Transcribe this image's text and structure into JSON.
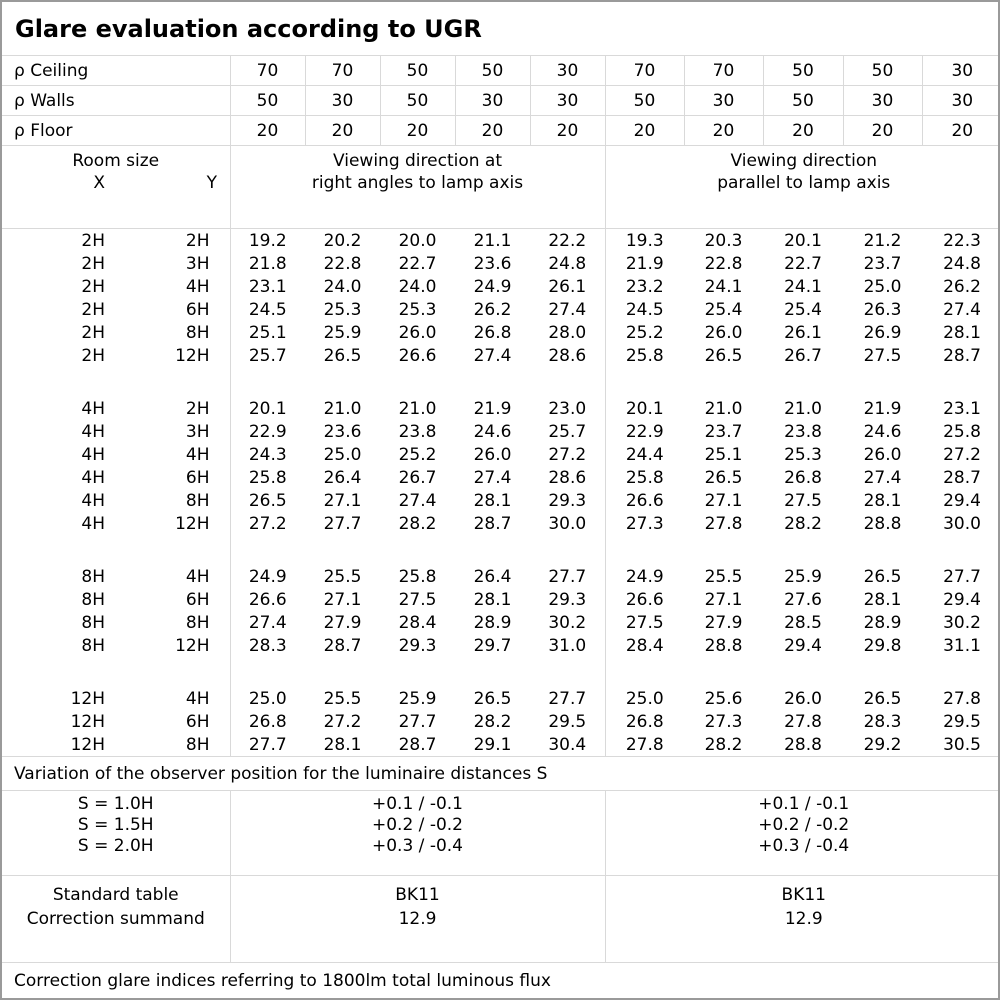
{
  "title": "Glare evaluation according to UGR",
  "colors": {
    "background": "#ffffff",
    "text": "#000000",
    "grid_line": "#d9d9d9",
    "outer_border": "#9a9a9a"
  },
  "reflectance": {
    "rows": [
      {
        "label": "ρ Ceiling",
        "values": [
          "70",
          "70",
          "50",
          "50",
          "30",
          "70",
          "70",
          "50",
          "50",
          "30"
        ]
      },
      {
        "label": "ρ Walls",
        "values": [
          "50",
          "30",
          "50",
          "30",
          "30",
          "50",
          "30",
          "50",
          "30",
          "30"
        ]
      },
      {
        "label": "ρ Floor",
        "values": [
          "20",
          "20",
          "20",
          "20",
          "20",
          "20",
          "20",
          "20",
          "20",
          "20"
        ]
      }
    ]
  },
  "room_size": {
    "label": "Room size",
    "x": "X",
    "y": "Y"
  },
  "viewing_groups": {
    "right_angles": {
      "line1": "Viewing direction at",
      "line2": "right angles to lamp axis"
    },
    "parallel": {
      "line1": "Viewing direction",
      "line2": "parallel to lamp axis"
    }
  },
  "ugr_blocks": [
    {
      "rows": [
        {
          "x": "2H",
          "y": "2H",
          "right_angles": [
            "19.2",
            "20.2",
            "20.0",
            "21.1",
            "22.2"
          ],
          "parallel": [
            "19.3",
            "20.3",
            "20.1",
            "21.2",
            "22.3"
          ]
        },
        {
          "x": "2H",
          "y": "3H",
          "right_angles": [
            "21.8",
            "22.8",
            "22.7",
            "23.6",
            "24.8"
          ],
          "parallel": [
            "21.9",
            "22.8",
            "22.7",
            "23.7",
            "24.8"
          ]
        },
        {
          "x": "2H",
          "y": "4H",
          "right_angles": [
            "23.1",
            "24.0",
            "24.0",
            "24.9",
            "26.1"
          ],
          "parallel": [
            "23.2",
            "24.1",
            "24.1",
            "25.0",
            "26.2"
          ]
        },
        {
          "x": "2H",
          "y": "6H",
          "right_angles": [
            "24.5",
            "25.3",
            "25.3",
            "26.2",
            "27.4"
          ],
          "parallel": [
            "24.5",
            "25.4",
            "25.4",
            "26.3",
            "27.4"
          ]
        },
        {
          "x": "2H",
          "y": "8H",
          "right_angles": [
            "25.1",
            "25.9",
            "26.0",
            "26.8",
            "28.0"
          ],
          "parallel": [
            "25.2",
            "26.0",
            "26.1",
            "26.9",
            "28.1"
          ]
        },
        {
          "x": "2H",
          "y": "12H",
          "right_angles": [
            "25.7",
            "26.5",
            "26.6",
            "27.4",
            "28.6"
          ],
          "parallel": [
            "25.8",
            "26.5",
            "26.7",
            "27.5",
            "28.7"
          ]
        }
      ]
    },
    {
      "rows": [
        {
          "x": "4H",
          "y": "2H",
          "right_angles": [
            "20.1",
            "21.0",
            "21.0",
            "21.9",
            "23.0"
          ],
          "parallel": [
            "20.1",
            "21.0",
            "21.0",
            "21.9",
            "23.1"
          ]
        },
        {
          "x": "4H",
          "y": "3H",
          "right_angles": [
            "22.9",
            "23.6",
            "23.8",
            "24.6",
            "25.7"
          ],
          "parallel": [
            "22.9",
            "23.7",
            "23.8",
            "24.6",
            "25.8"
          ]
        },
        {
          "x": "4H",
          "y": "4H",
          "right_angles": [
            "24.3",
            "25.0",
            "25.2",
            "26.0",
            "27.2"
          ],
          "parallel": [
            "24.4",
            "25.1",
            "25.3",
            "26.0",
            "27.2"
          ]
        },
        {
          "x": "4H",
          "y": "6H",
          "right_angles": [
            "25.8",
            "26.4",
            "26.7",
            "27.4",
            "28.6"
          ],
          "parallel": [
            "25.8",
            "26.5",
            "26.8",
            "27.4",
            "28.7"
          ]
        },
        {
          "x": "4H",
          "y": "8H",
          "right_angles": [
            "26.5",
            "27.1",
            "27.4",
            "28.1",
            "29.3"
          ],
          "parallel": [
            "26.6",
            "27.1",
            "27.5",
            "28.1",
            "29.4"
          ]
        },
        {
          "x": "4H",
          "y": "12H",
          "right_angles": [
            "27.2",
            "27.7",
            "28.2",
            "28.7",
            "30.0"
          ],
          "parallel": [
            "27.3",
            "27.8",
            "28.2",
            "28.8",
            "30.0"
          ]
        }
      ]
    },
    {
      "rows": [
        {
          "x": "8H",
          "y": "4H",
          "right_angles": [
            "24.9",
            "25.5",
            "25.8",
            "26.4",
            "27.7"
          ],
          "parallel": [
            "24.9",
            "25.5",
            "25.9",
            "26.5",
            "27.7"
          ]
        },
        {
          "x": "8H",
          "y": "6H",
          "right_angles": [
            "26.6",
            "27.1",
            "27.5",
            "28.1",
            "29.3"
          ],
          "parallel": [
            "26.6",
            "27.1",
            "27.6",
            "28.1",
            "29.4"
          ]
        },
        {
          "x": "8H",
          "y": "8H",
          "right_angles": [
            "27.4",
            "27.9",
            "28.4",
            "28.9",
            "30.2"
          ],
          "parallel": [
            "27.5",
            "27.9",
            "28.5",
            "28.9",
            "30.2"
          ]
        },
        {
          "x": "8H",
          "y": "12H",
          "right_angles": [
            "28.3",
            "28.7",
            "29.3",
            "29.7",
            "31.0"
          ],
          "parallel": [
            "28.4",
            "28.8",
            "29.4",
            "29.8",
            "31.1"
          ]
        }
      ]
    },
    {
      "rows": [
        {
          "x": "12H",
          "y": "4H",
          "right_angles": [
            "25.0",
            "25.5",
            "25.9",
            "26.5",
            "27.7"
          ],
          "parallel": [
            "25.0",
            "25.6",
            "26.0",
            "26.5",
            "27.8"
          ]
        },
        {
          "x": "12H",
          "y": "6H",
          "right_angles": [
            "26.8",
            "27.2",
            "27.7",
            "28.2",
            "29.5"
          ],
          "parallel": [
            "26.8",
            "27.3",
            "27.8",
            "28.3",
            "29.5"
          ]
        },
        {
          "x": "12H",
          "y": "8H",
          "right_angles": [
            "27.7",
            "28.1",
            "28.7",
            "29.1",
            "30.4"
          ],
          "parallel": [
            "27.8",
            "28.2",
            "28.8",
            "29.2",
            "30.5"
          ]
        }
      ]
    }
  ],
  "variation_note": "Variation of the observer position for the luminaire distances S",
  "s_variation": {
    "labels": [
      "S = 1.0H",
      "S = 1.5H",
      "S = 2.0H"
    ],
    "right_angles": [
      "+0.1 / -0.1",
      "+0.2 / -0.2",
      "+0.3 / -0.4"
    ],
    "parallel": [
      "+0.1 / -0.1",
      "+0.2 / -0.2",
      "+0.3 / -0.4"
    ]
  },
  "summary": {
    "labels": [
      "Standard table",
      "Correction summand"
    ],
    "right_angles": [
      "BK11",
      "12.9"
    ],
    "parallel": [
      "BK11",
      "12.9"
    ]
  },
  "footer_note": "Correction glare indices referring to 1800lm total luminous flux"
}
